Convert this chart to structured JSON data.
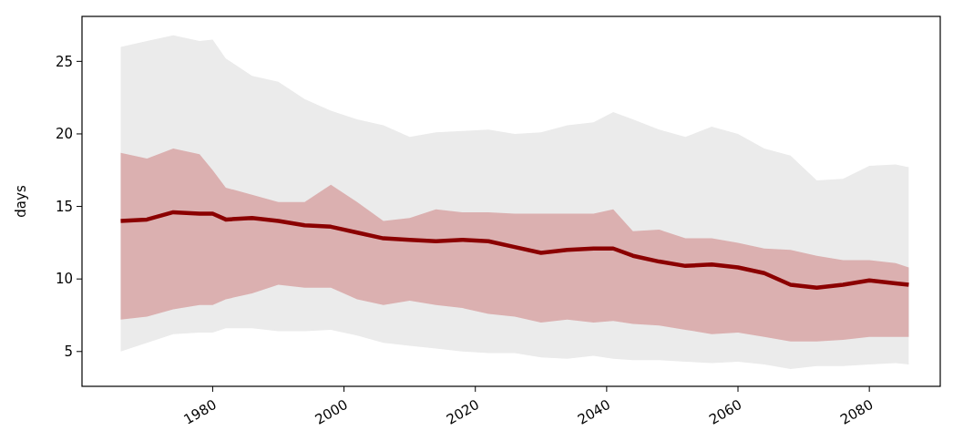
{
  "chart_data": {
    "type": "line",
    "ylabel": "days",
    "x": [
      1966,
      1970,
      1974,
      1978,
      1980,
      1982,
      1986,
      1990,
      1994,
      1998,
      2002,
      2006,
      2010,
      2014,
      2018,
      2022,
      2026,
      2030,
      2034,
      2038,
      2041,
      2044,
      2048,
      2052,
      2056,
      2060,
      2064,
      2068,
      2072,
      2076,
      2080,
      2084,
      2086
    ],
    "series": [
      {
        "color": "#ebebeb",
        "values": [
          null,
          null,
          null,
          null,
          null,
          null,
          null,
          null,
          null,
          null,
          null,
          null,
          null,
          null,
          null,
          null,
          null,
          null,
          null,
          null,
          null,
          null,
          null,
          null,
          null,
          null,
          null,
          null,
          null,
          null,
          null,
          null,
          null
        ],
        "upper": [
          26.0,
          26.4,
          26.8,
          26.4,
          26.5,
          25.2,
          24.0,
          23.6,
          22.4,
          21.6,
          21.0,
          20.6,
          19.8,
          20.1,
          20.2,
          20.3,
          20.0,
          20.1,
          20.6,
          20.8,
          21.5,
          21.0,
          20.3,
          19.8,
          20.5,
          20.0,
          19.0,
          18.5,
          16.8,
          16.9,
          17.8,
          17.9,
          17.7
        ],
        "lower": [
          5.0,
          5.6,
          6.2,
          6.3,
          6.3,
          6.6,
          6.6,
          6.4,
          6.4,
          6.5,
          6.1,
          5.6,
          5.4,
          5.2,
          5.0,
          4.9,
          4.9,
          4.6,
          4.5,
          4.7,
          4.5,
          4.4,
          4.4,
          4.3,
          4.2,
          4.3,
          4.1,
          3.8,
          4.0,
          4.0,
          4.1,
          4.2,
          4.1
        ]
      },
      {
        "color": "#8b0000",
        "values": [
          14.0,
          14.1,
          14.6,
          14.5,
          14.5,
          14.1,
          14.2,
          14.0,
          13.7,
          13.6,
          13.2,
          12.8,
          12.7,
          12.6,
          12.7,
          12.6,
          12.2,
          11.8,
          12.0,
          12.1,
          12.1,
          11.6,
          11.2,
          10.9,
          11.0,
          10.8,
          10.4,
          9.6,
          9.4,
          9.6,
          9.9,
          9.7,
          9.6
        ],
        "lower": [
          7.2,
          7.4,
          7.9,
          8.2,
          8.2,
          8.6,
          9.0,
          9.6,
          9.4,
          9.4,
          8.6,
          8.2,
          8.5,
          8.2,
          8.0,
          7.6,
          7.4,
          7.0,
          7.2,
          7.0,
          7.1,
          6.9,
          6.8,
          6.5,
          6.2,
          6.3,
          6.0,
          5.7,
          5.7,
          5.8,
          6.0,
          6.0,
          6.0
        ],
        "upper": [
          18.7,
          18.3,
          19.0,
          18.6,
          17.5,
          16.3,
          15.8,
          15.3,
          15.3,
          16.5,
          15.3,
          14.0,
          14.2,
          14.8,
          14.6,
          14.6,
          14.5,
          14.5,
          14.5,
          14.5,
          14.8,
          13.3,
          13.4,
          12.8,
          12.8,
          12.5,
          12.1,
          12.0,
          11.6,
          11.3,
          11.3,
          11.1,
          10.8
        ]
      }
    ],
    "xlim": [
      1960.1,
      2090.8
    ],
    "xticks": [
      1980,
      2000,
      2020,
      2040,
      2060,
      2080
    ],
    "ylim": [
      2.6,
      28.1
    ],
    "yticks": [
      5,
      10,
      15,
      20,
      25
    ],
    "grid": false
  }
}
